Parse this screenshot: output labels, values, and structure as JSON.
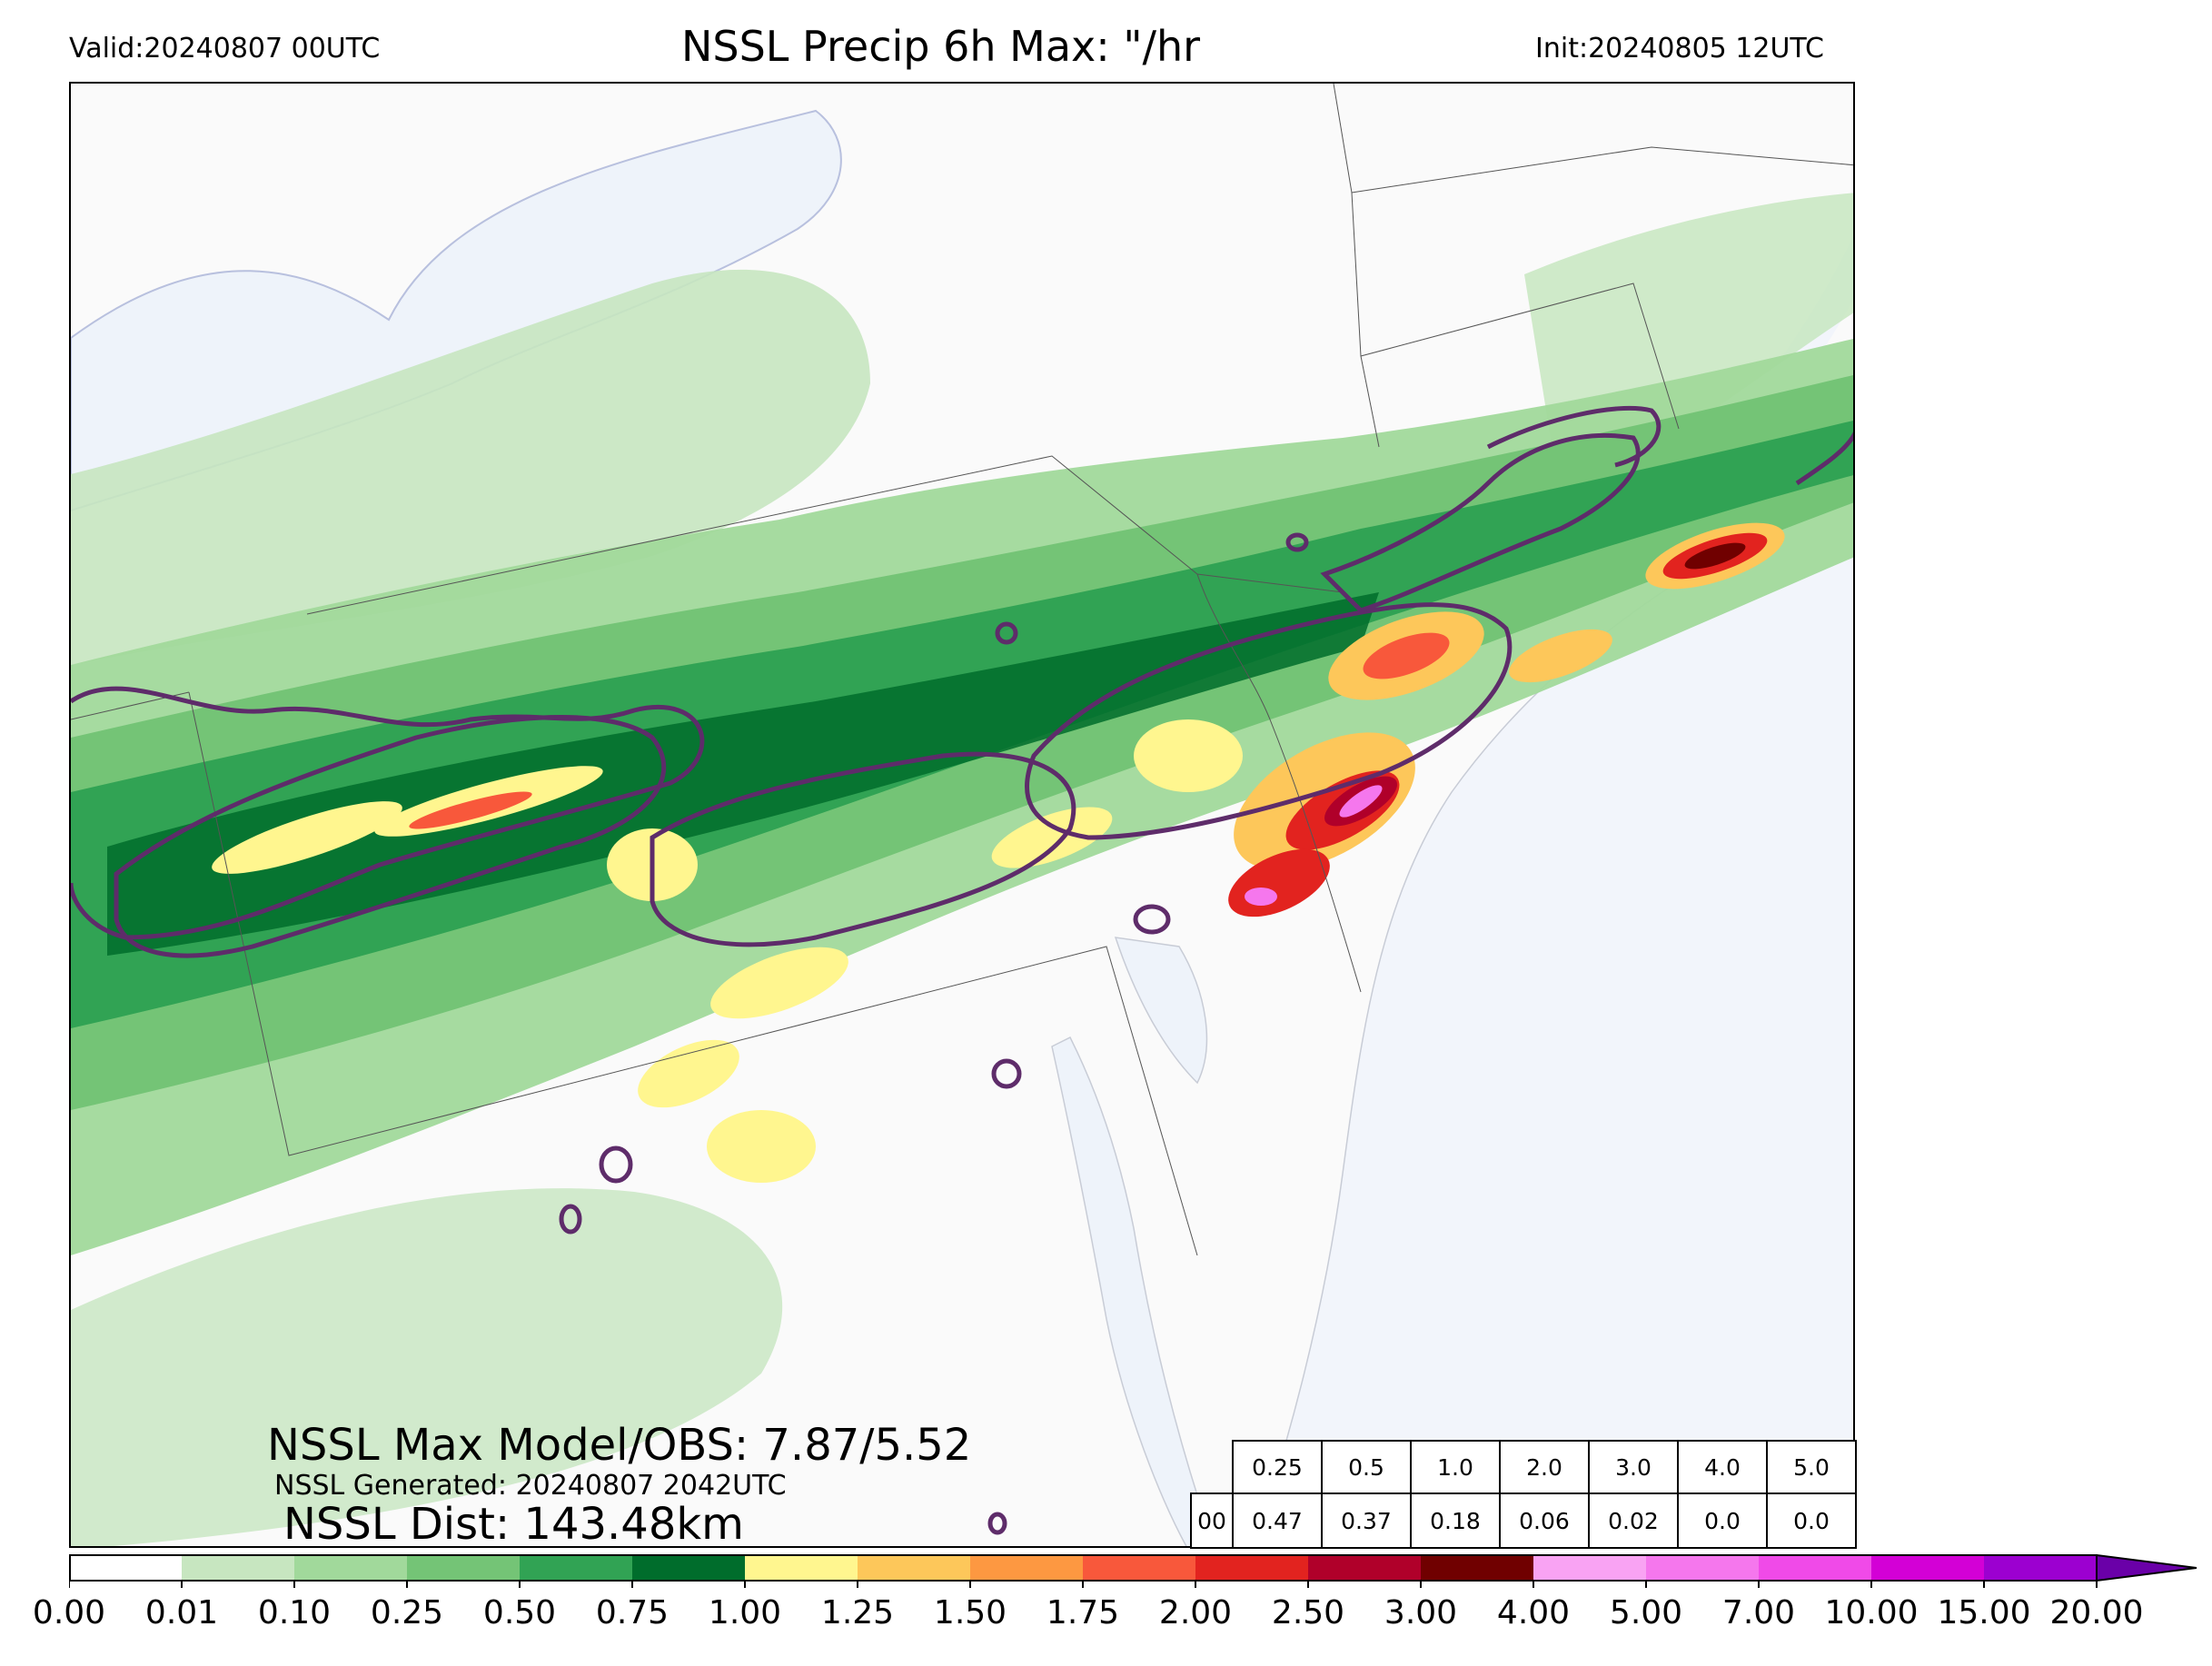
{
  "header": {
    "valid": "Valid:20240807 00UTC",
    "title": "NSSL Precip 6h Max: \"/hr",
    "init": "Init:20240805 12UTC"
  },
  "annotations": {
    "max_model_obs": "NSSL Max Model/OBS: 7.87/5.52",
    "generated": "NSSL Generated: 20240807 2042UTC",
    "dist": "NSSL Dist: 143.48km"
  },
  "threshold_table": {
    "thresholds": [
      "0.25",
      "0.5",
      "1.0",
      "2.0",
      "3.0",
      "4.0",
      "5.0"
    ],
    "row_label": "00",
    "values": [
      "0.47",
      "0.37",
      "0.18",
      "0.06",
      "0.02",
      "0.0",
      "0.0"
    ]
  },
  "colorbar": {
    "ticks": [
      "0.00",
      "0.01",
      "0.10",
      "0.25",
      "0.50",
      "0.75",
      "1.00",
      "1.25",
      "1.50",
      "1.75",
      "2.00",
      "2.50",
      "3.00",
      "4.00",
      "5.00",
      "7.00",
      "10.00",
      "15.00",
      "20.00"
    ],
    "colors": [
      "#ffffff",
      "#c7e6c0",
      "#a1d99b",
      "#74c476",
      "#31a354",
      "#006d2c",
      "#fff68f",
      "#fdc75a",
      "#fd9841",
      "#f8583b",
      "#e2231f",
      "#b0002a",
      "#700000",
      "#f9a3f3",
      "#f577ed",
      "#f04ae8",
      "#d300d6",
      "#9c00d0"
    ],
    "extend_color": "#6a00a8",
    "extend": "max"
  },
  "map_colors": {
    "land": "#fafafa",
    "water": "#eef3fa",
    "obs_contour": "#5e2c6a"
  }
}
